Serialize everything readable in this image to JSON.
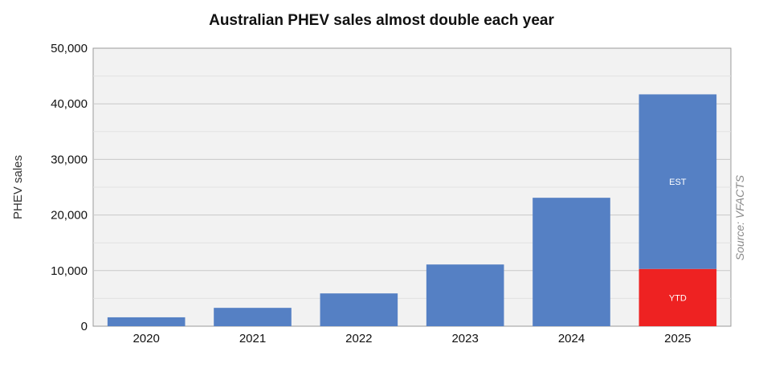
{
  "chart_data": {
    "type": "bar",
    "title": "Australian PHEV sales almost double each year",
    "ylabel": "PHEV sales",
    "source": "Source: VFACTS",
    "categories": [
      "2020",
      "2021",
      "2022",
      "2023",
      "2024",
      "2025"
    ],
    "series": [
      {
        "name": "",
        "values": [
          1600,
          3300,
          5900,
          11100,
          23100,
          10300
        ],
        "color": "#5580c4"
      },
      {
        "name": "",
        "values": [
          0,
          0,
          0,
          0,
          0,
          31400
        ],
        "color": "#5580c4"
      }
    ],
    "highlight": {
      "category": "2025",
      "segment_index": 0,
      "color": "#ee2222"
    },
    "segment_labels": {
      "ytd": "YTD",
      "est": "EST"
    },
    "ylim": [
      0,
      50000
    ],
    "yticks": [
      0,
      10000,
      20000,
      30000,
      40000,
      50000
    ],
    "ytick_labels": [
      "0",
      "10,000",
      "20,000",
      "30,000",
      "40,000",
      "50,000"
    ],
    "grid": true,
    "colors": {
      "bar": "#5580c4",
      "ytd": "#ee2222",
      "plot_bg": "#f2f2f2",
      "grid": "#c8c8c8"
    }
  }
}
